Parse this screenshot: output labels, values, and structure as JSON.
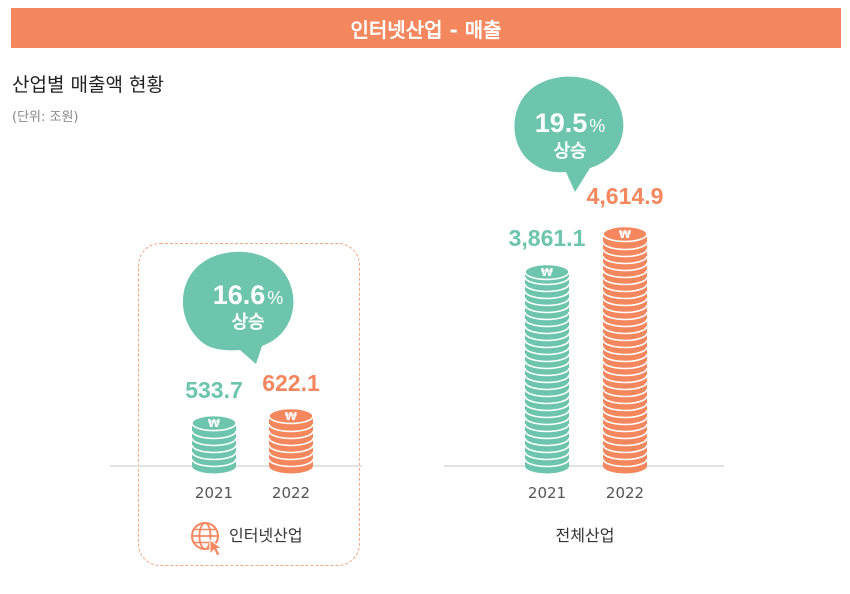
{
  "banner": {
    "title": "인터넷산업 - 매출"
  },
  "heading": {
    "title": "산업별 매출액 현황",
    "unit": "(단위: 조원)"
  },
  "colors": {
    "banner": "#f5875f",
    "y2021": "#6cc5ac",
    "y2022": "#f5875f",
    "bubble": "#6cc5ac"
  },
  "chart_data": [
    {
      "type": "bar",
      "label": "인터넷산업",
      "icon": "globe-cursor-icon",
      "categories": [
        "2021",
        "2022"
      ],
      "values": [
        533.7,
        622.1
      ],
      "value_labels": [
        "533.7",
        "622.1"
      ],
      "growth": {
        "value": "16.6",
        "unit": "%",
        "text": "상승"
      }
    },
    {
      "type": "bar",
      "label": "전체산업",
      "categories": [
        "2021",
        "2022"
      ],
      "values": [
        3861.1,
        4614.9
      ],
      "value_labels": [
        "3,861.1",
        "4,614.9"
      ],
      "growth": {
        "value": "19.5",
        "unit": "%",
        "text": "상승"
      }
    }
  ]
}
